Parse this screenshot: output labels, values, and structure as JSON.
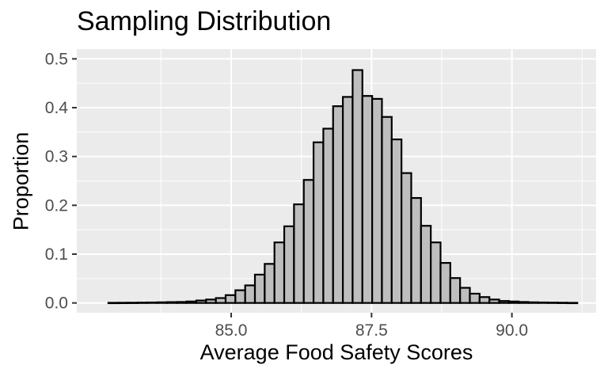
{
  "chart_data": {
    "type": "bar",
    "title": "Sampling Distribution",
    "xlabel": "Average Food Safety Scores",
    "ylabel": "Proportion",
    "xlim": [
      82.25,
      91.5
    ],
    "ylim": [
      -0.02,
      0.52
    ],
    "x_ticks": [
      85.0,
      87.5,
      90.0
    ],
    "x_tick_labels": [
      "85.0",
      "87.5",
      "90.0"
    ],
    "y_ticks": [
      0.0,
      0.1,
      0.2,
      0.3,
      0.4,
      0.5
    ],
    "y_tick_labels": [
      "0.0",
      "0.1",
      "0.2",
      "0.3",
      "0.4",
      "0.5"
    ],
    "grid": true,
    "bin_width": 0.174,
    "x": [
      82.9,
      83.074,
      83.248,
      83.422,
      83.596,
      83.77,
      83.944,
      84.118,
      84.292,
      84.466,
      84.64,
      84.814,
      84.988,
      85.162,
      85.336,
      85.51,
      85.684,
      85.858,
      86.032,
      86.206,
      86.38,
      86.554,
      86.728,
      86.902,
      87.076,
      87.25,
      87.424,
      87.598,
      87.772,
      87.946,
      88.12,
      88.294,
      88.468,
      88.642,
      88.816,
      88.99,
      89.164,
      89.338,
      89.512,
      89.686,
      89.86,
      90.034,
      90.208,
      90.382,
      90.556,
      90.73,
      90.904,
      91.078
    ],
    "values": [
      0.0003,
      0.0004,
      0.0005,
      0.0007,
      0.001,
      0.0013,
      0.0017,
      0.002,
      0.003,
      0.005,
      0.007,
      0.01,
      0.016,
      0.026,
      0.036,
      0.058,
      0.08,
      0.124,
      0.157,
      0.202,
      0.252,
      0.329,
      0.357,
      0.403,
      0.422,
      0.477,
      0.424,
      0.418,
      0.381,
      0.335,
      0.266,
      0.215,
      0.158,
      0.124,
      0.082,
      0.051,
      0.031,
      0.019,
      0.012,
      0.007,
      0.004,
      0.003,
      0.002,
      0.0013,
      0.001,
      0.0007,
      0.0005,
      0.0003
    ],
    "colors": {
      "panel": "#ebebeb",
      "grid_major": "#ffffff",
      "bar_fill": "#bebebe",
      "bar_stroke": "#000000",
      "tick_text": "#4d4d4d",
      "tick_mark": "#333333"
    }
  }
}
